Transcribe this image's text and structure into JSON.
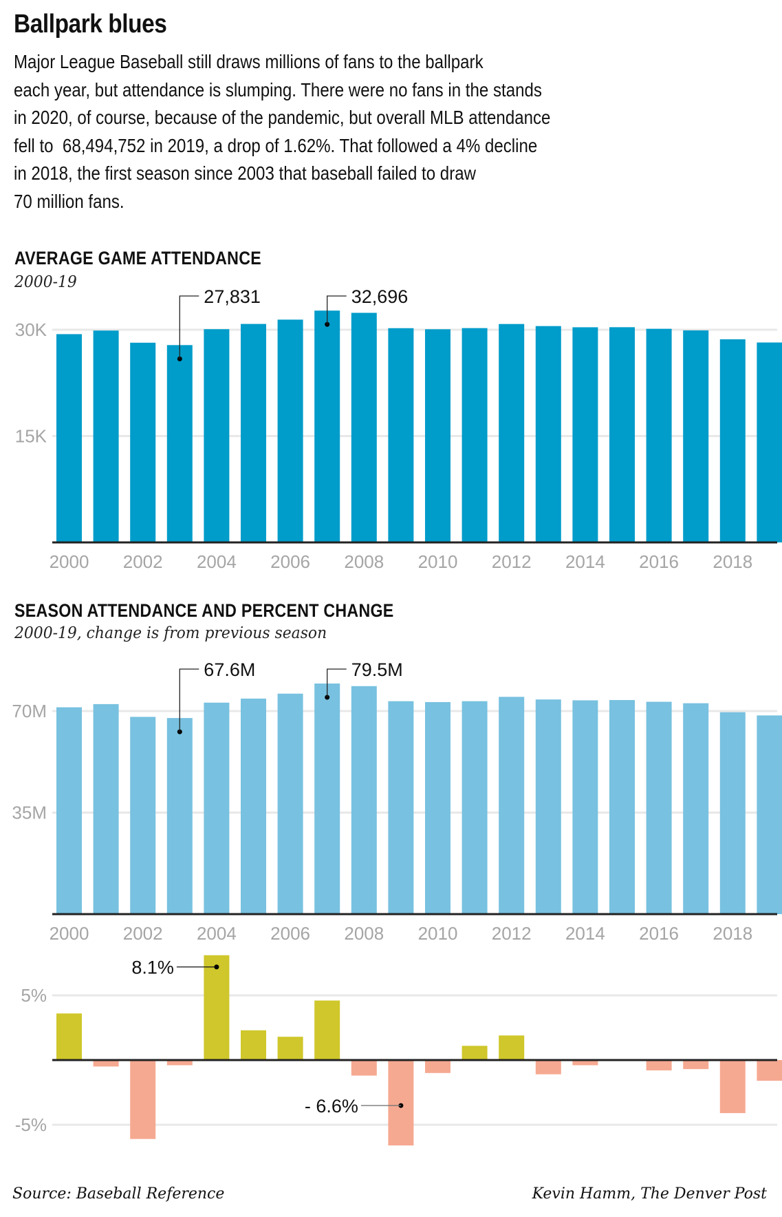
{
  "headline": "Ballpark blues",
  "intro_lines": [
    "Major League Baseball still draws millions of fans to the ballpark",
    "each year, but attendance is slumping. There were no fans in the stands",
    "in 2020, of course, because of the pandemic, but overall MLB attendance",
    "fell to  68,494,752 in 2019, a drop of 1.62%. That followed a 4% decline",
    "in 2018, the first season since 2003 that baseball failed to draw",
    "70 million fans."
  ],
  "colors": {
    "avg_bar": "#009cca",
    "season_bar": "#78c1e0",
    "positive": "#cfc72b",
    "negative": "#f6a991",
    "grid": "#e8e8e8",
    "axis": "#222222",
    "tick_text": "#a5a5a5"
  },
  "footer": {
    "source": "Source: Baseball Reference",
    "credit": "Kevin Hamm, The Denver Post"
  },
  "chart_data": [
    {
      "type": "bar",
      "title": "AVERAGE GAME ATTENDANCE",
      "subtitle": "2000-19",
      "categories": [
        "2000",
        "2001",
        "2002",
        "2003",
        "2004",
        "2005",
        "2006",
        "2007",
        "2008",
        "2009",
        "2010",
        "2011",
        "2012",
        "2013",
        "2014",
        "2015",
        "2016",
        "2017",
        "2018",
        "2019"
      ],
      "x_tick_labels": [
        "2000",
        "2002",
        "2004",
        "2006",
        "2008",
        "2010",
        "2012",
        "2014",
        "2016",
        "2018"
      ],
      "values": [
        29377,
        29881,
        28168,
        27831,
        30075,
        30816,
        31423,
        32696,
        32382,
        30218,
        30066,
        30228,
        30806,
        30514,
        30346,
        30355,
        30131,
        29908,
        28652,
        28198
      ],
      "ylim": [
        0,
        33500
      ],
      "y_ticks": [
        {
          "value": 15000,
          "label": "15K"
        },
        {
          "value": 30000,
          "label": "30K"
        }
      ],
      "grid": true,
      "annotations": [
        {
          "category": "2003",
          "value": 27831,
          "label": "27,831",
          "side": "right-above"
        },
        {
          "category": "2007",
          "value": 32696,
          "label": "32,696",
          "side": "right-above"
        }
      ],
      "xlabel": "",
      "ylabel": ""
    },
    {
      "type": "bar",
      "title": "SEASON ATTENDANCE AND PERCENT CHANGE",
      "subtitle": "2000-19, change is from previous season",
      "categories": [
        "2000",
        "2001",
        "2002",
        "2003",
        "2004",
        "2005",
        "2006",
        "2007",
        "2008",
        "2009",
        "2010",
        "2011",
        "2012",
        "2013",
        "2014",
        "2015",
        "2016",
        "2017",
        "2018",
        "2019"
      ],
      "x_tick_labels": [
        "2000",
        "2002",
        "2004",
        "2006",
        "2008",
        "2010",
        "2012",
        "2014",
        "2016",
        "2018"
      ],
      "values": [
        71.3,
        72.4,
        68.0,
        67.6,
        72.9,
        74.3,
        76.0,
        79.5,
        78.6,
        73.4,
        73.1,
        73.4,
        74.9,
        74.0,
        73.7,
        73.8,
        73.2,
        72.7,
        69.6,
        68.5
      ],
      "units": "millions",
      "ylim": [
        0,
        80
      ],
      "y_ticks": [
        {
          "value": 35,
          "label": "35M"
        },
        {
          "value": 70,
          "label": "70M"
        }
      ],
      "grid": true,
      "annotations": [
        {
          "category": "2003",
          "value": 67.6,
          "label": "67.6M",
          "side": "right-above"
        },
        {
          "category": "2007",
          "value": 79.5,
          "label": "79.5M",
          "side": "right-above"
        }
      ],
      "xlabel": "",
      "ylabel": ""
    },
    {
      "type": "bar",
      "title": "Percent change from previous season",
      "categories": [
        "2000",
        "2001",
        "2002",
        "2003",
        "2004",
        "2005",
        "2006",
        "2007",
        "2008",
        "2009",
        "2010",
        "2011",
        "2012",
        "2013",
        "2014",
        "2015",
        "2016",
        "2017",
        "2018",
        "2019"
      ],
      "values": [
        3.6,
        -0.5,
        -6.1,
        -0.4,
        8.1,
        2.3,
        1.8,
        4.6,
        -1.2,
        -6.6,
        -1.0,
        1.1,
        1.9,
        -1.1,
        -0.4,
        0.0,
        -0.8,
        -0.7,
        -4.1,
        -1.6
      ],
      "units": "percent",
      "ylim": [
        -7,
        8.5
      ],
      "y_ticks": [
        {
          "value": 5,
          "label": "5%"
        },
        {
          "value": -5,
          "label": "-5%"
        }
      ],
      "grid": true,
      "annotations": [
        {
          "category": "2004",
          "value": 8.1,
          "label": "8.1%",
          "side": "left"
        },
        {
          "category": "2009",
          "value": -6.6,
          "label": "- 6.6%",
          "side": "left"
        }
      ],
      "xlabel": "",
      "ylabel": ""
    }
  ]
}
